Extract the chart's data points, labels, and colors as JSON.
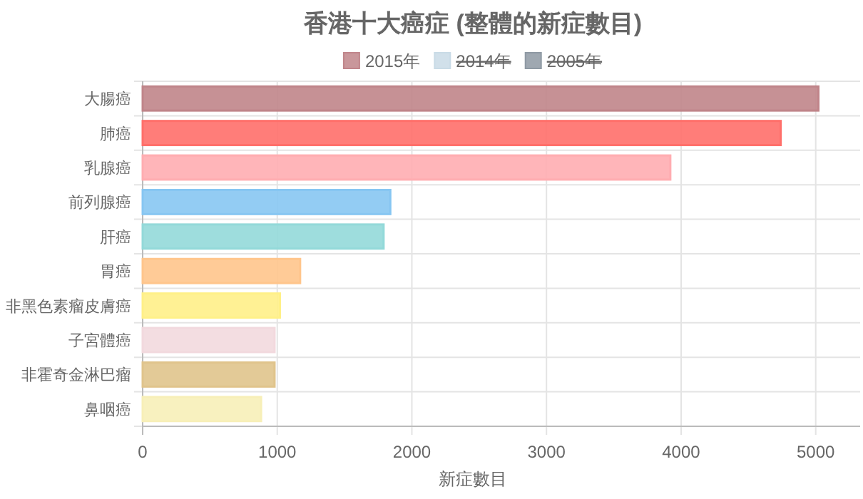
{
  "chart_data": {
    "type": "bar",
    "orientation": "horizontal",
    "title": "香港十大癌症 (整體的新症數目)",
    "xlabel": "新症數目",
    "categories": [
      "大腸癌",
      "肺癌",
      "乳腺癌",
      "前列腺癌",
      "肝癌",
      "胃癌",
      "非黑色素瘤皮膚癌",
      "子宮體癌",
      "非霍奇金淋巴瘤",
      "鼻咽癌"
    ],
    "series": [
      {
        "name": "2015年",
        "color": "#c0858a",
        "colors": [
          "#c0858a",
          "#ff6f6a",
          "#ffadb1",
          "#87c6f2",
          "#93d9d9",
          "#ffc58c",
          "#fff088",
          "#f2d9de",
          "#e0c48c",
          "#f7efb8"
        ],
        "values": [
          5020,
          4740,
          3920,
          1840,
          1790,
          1170,
          1020,
          980,
          980,
          880
        ]
      },
      {
        "name": "2014年",
        "color": "#c9dbe6",
        "values": [
          null,
          null,
          null,
          null,
          null,
          null,
          null,
          null,
          null,
          null
        ]
      },
      {
        "name": "2005年",
        "color": "#8e99a3",
        "values": [
          null,
          null,
          null,
          null,
          null,
          null,
          null,
          null,
          null,
          null
        ]
      }
    ],
    "xlim": [
      0,
      5330
    ],
    "xticks": [
      0,
      1000,
      2000,
      3000,
      4000,
      5000
    ],
    "grid": true,
    "legend": "top"
  }
}
